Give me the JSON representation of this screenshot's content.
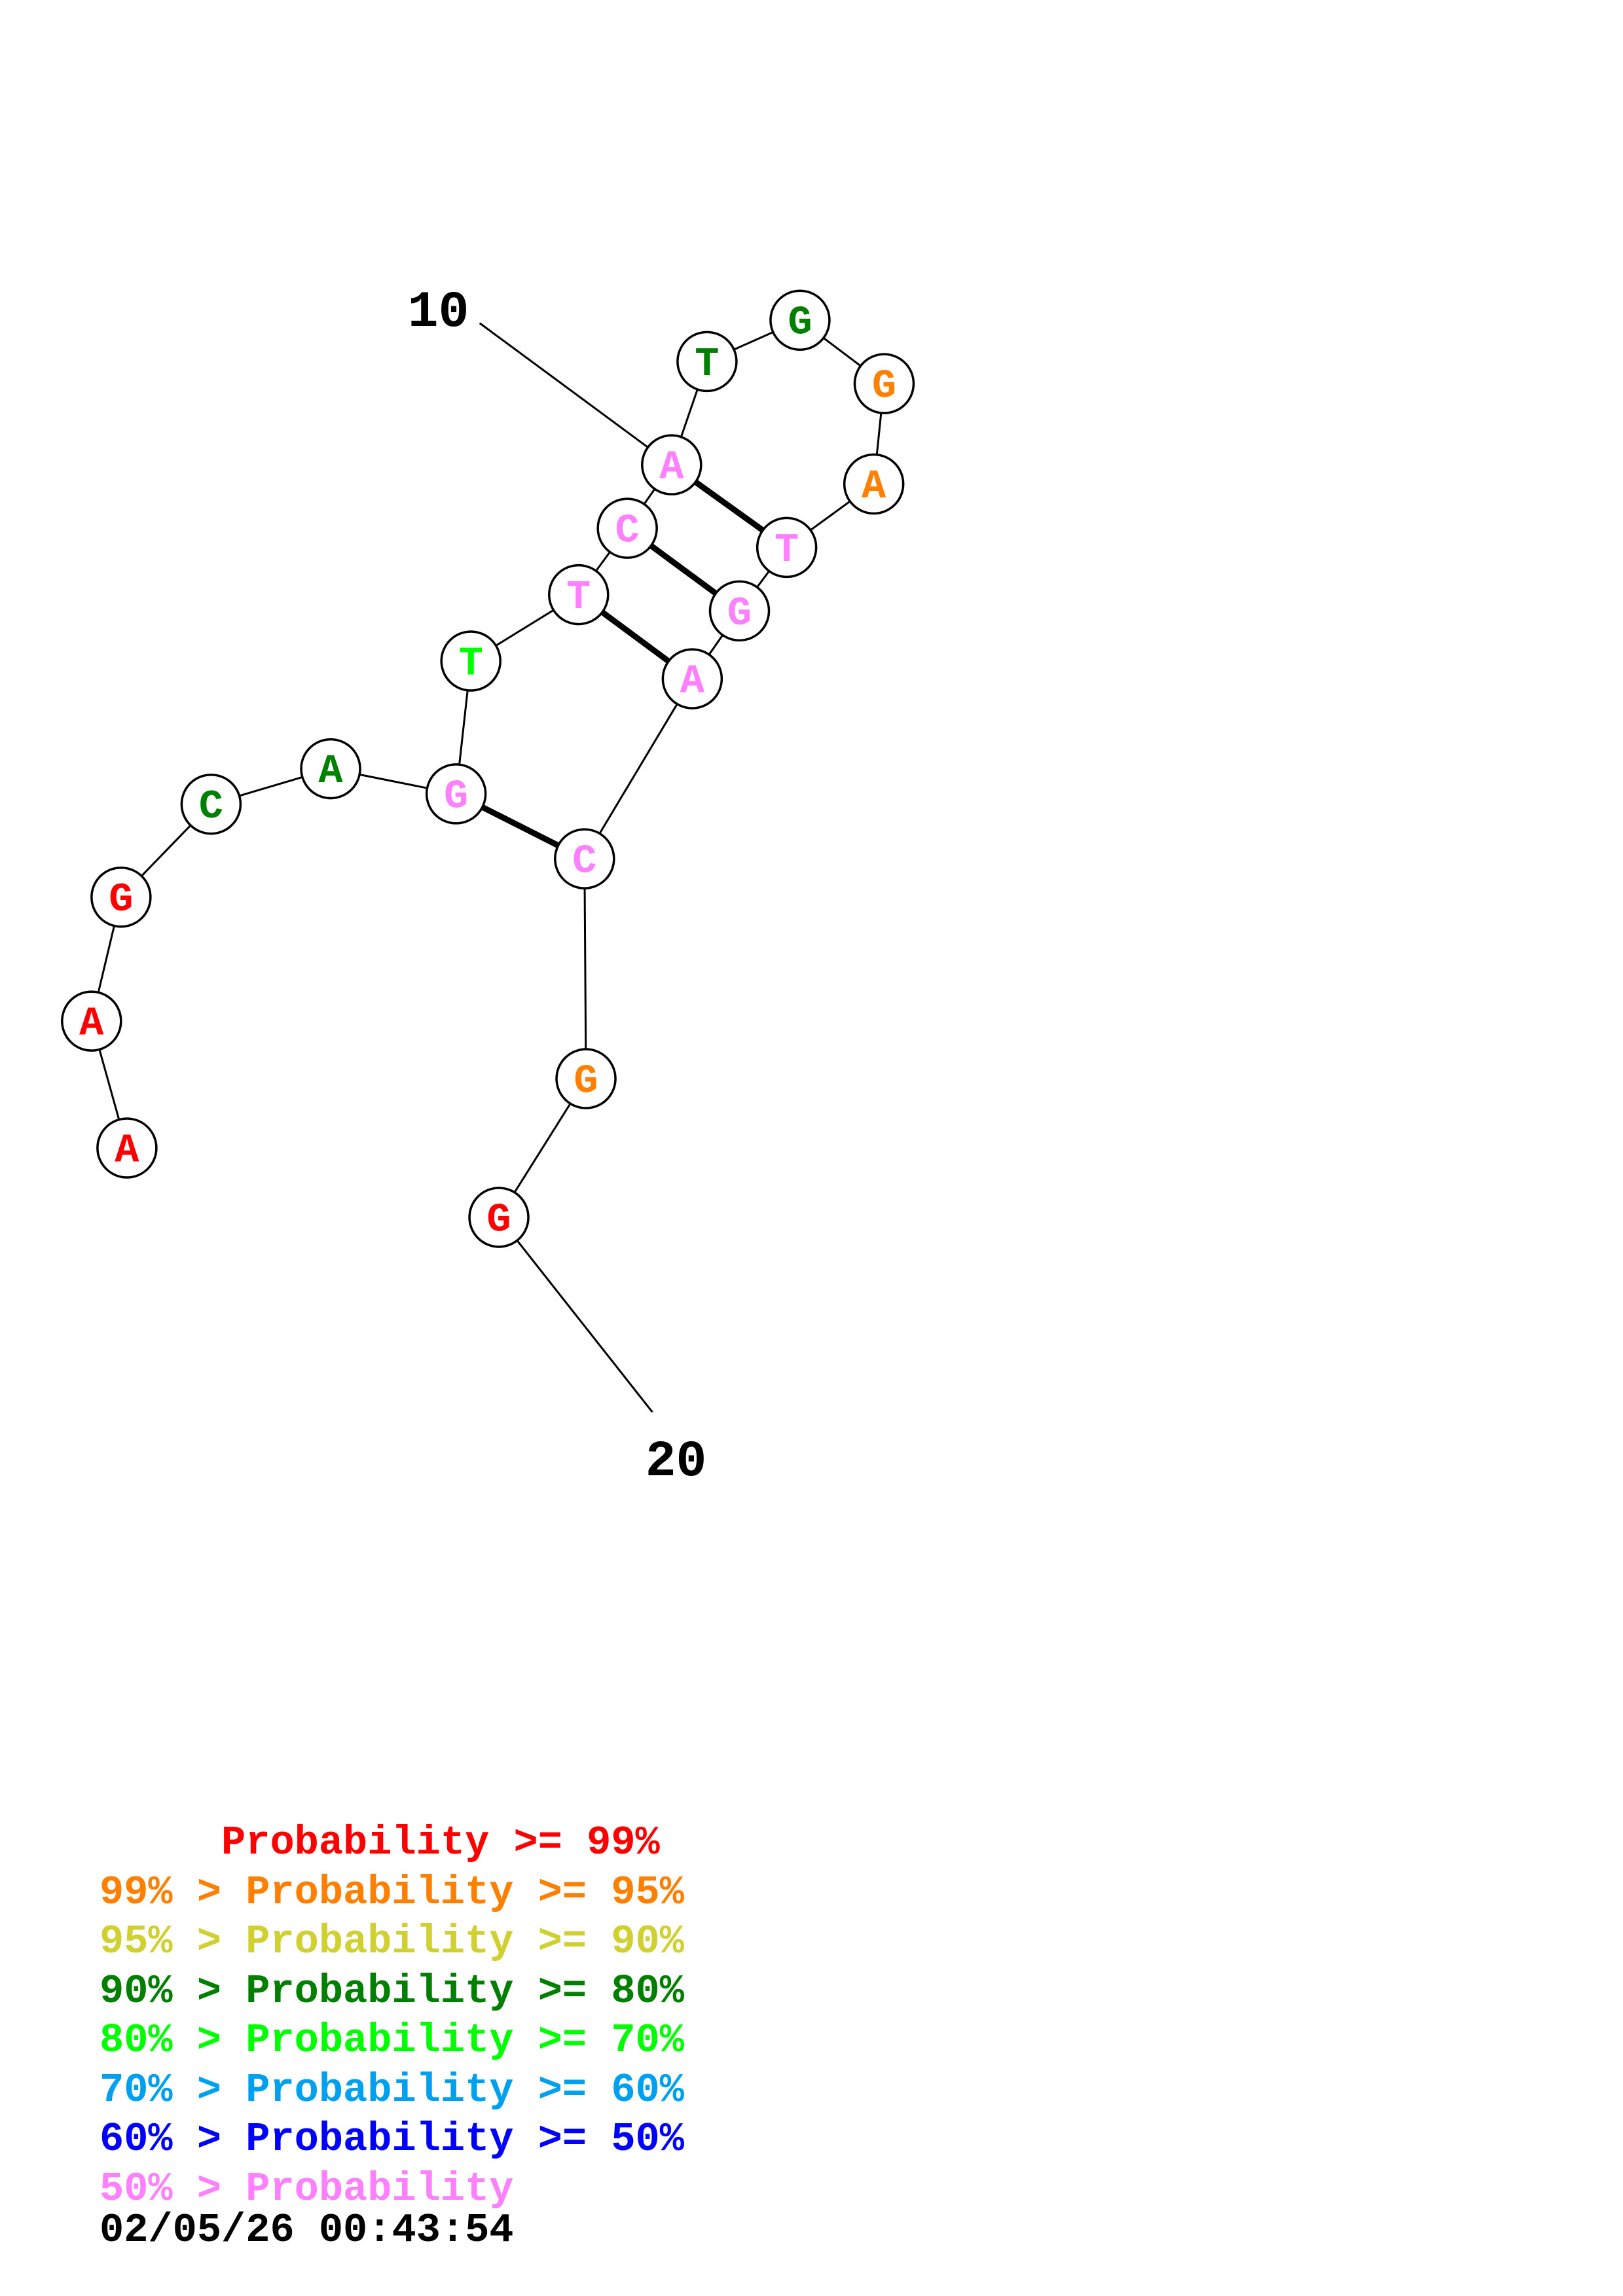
{
  "structure": {
    "nucleotides": [
      {
        "index": 1,
        "base": "A",
        "color": "#ff0000"
      },
      {
        "index": 2,
        "base": "A",
        "color": "#ff0000"
      },
      {
        "index": 3,
        "base": "G",
        "color": "#ff0000"
      },
      {
        "index": 4,
        "base": "C",
        "color": "#008000"
      },
      {
        "index": 5,
        "base": "A",
        "color": "#008000"
      },
      {
        "index": 6,
        "base": "G",
        "color": "#ff80ff"
      },
      {
        "index": 7,
        "base": "T",
        "color": "#00ff00"
      },
      {
        "index": 8,
        "base": "T",
        "color": "#ff80ff"
      },
      {
        "index": 9,
        "base": "C",
        "color": "#ff80ff"
      },
      {
        "index": 10,
        "base": "A",
        "color": "#ff80ff"
      },
      {
        "index": 11,
        "base": "T",
        "color": "#008000"
      },
      {
        "index": 12,
        "base": "G",
        "color": "#008000"
      },
      {
        "index": 13,
        "base": "G",
        "color": "#ff8000"
      },
      {
        "index": 14,
        "base": "A",
        "color": "#ff8000"
      },
      {
        "index": 15,
        "base": "T",
        "color": "#ff80ff"
      },
      {
        "index": 16,
        "base": "G",
        "color": "#ff80ff"
      },
      {
        "index": 17,
        "base": "A",
        "color": "#ff80ff"
      },
      {
        "index": 18,
        "base": "C",
        "color": "#ff80ff"
      },
      {
        "index": 19,
        "base": "G",
        "color": "#ff8000"
      },
      {
        "index": 20,
        "base": "G",
        "color": "#ff0000"
      }
    ],
    "pairs": [
      [
        6,
        18
      ],
      [
        8,
        17
      ],
      [
        9,
        16
      ],
      [
        10,
        15
      ]
    ],
    "markers": [
      {
        "label": "10",
        "index": 10
      },
      {
        "label": "20",
        "index": 20
      }
    ]
  },
  "legend": [
    {
      "text": "     Probability >= 99%",
      "color": "#ff0000"
    },
    {
      "text": "99% > Probability >= 95%",
      "color": "#ff8000"
    },
    {
      "text": "95% > Probability >= 90%",
      "color": "#d0d030"
    },
    {
      "text": "90% > Probability >= 80%",
      "color": "#008000"
    },
    {
      "text": "80% > Probability >= 70%",
      "color": "#00ff00"
    },
    {
      "text": "70% > Probability >= 60%",
      "color": "#00a0f0"
    },
    {
      "text": "60% > Probability >= 50%",
      "color": "#0000ff"
    },
    {
      "text": "50% > Probability",
      "color": "#ff80ff"
    }
  ],
  "timestamp": "02/05/26 00:43:54"
}
